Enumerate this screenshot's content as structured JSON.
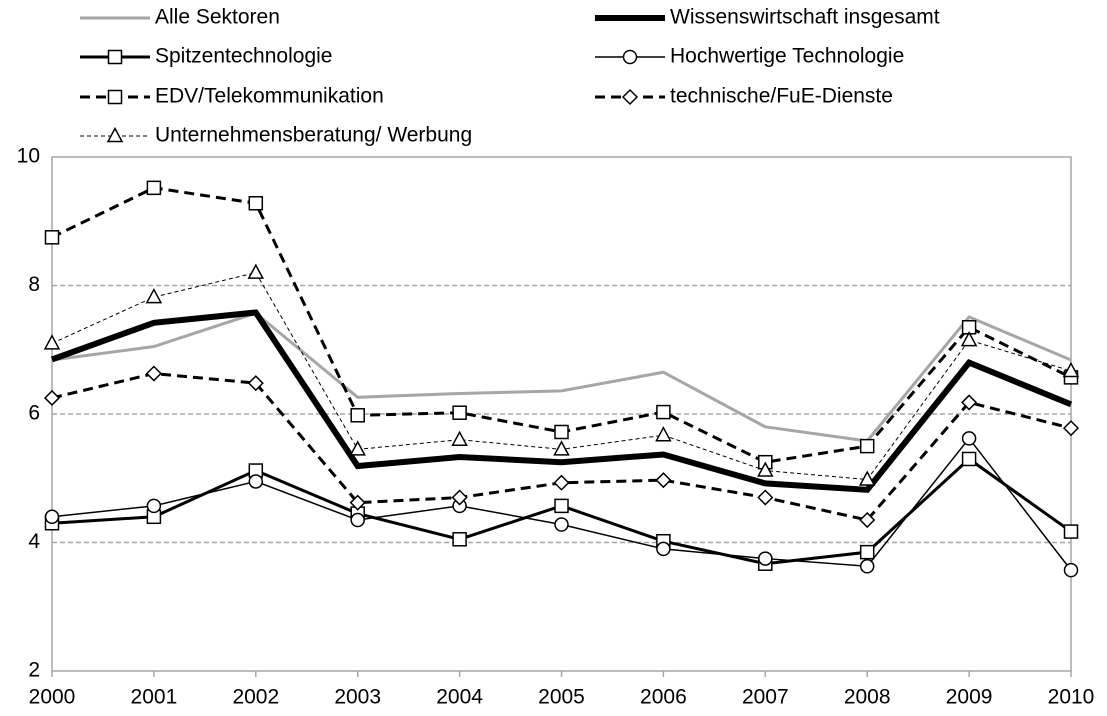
{
  "chart_data": {
    "type": "line",
    "x": [
      2000,
      2001,
      2002,
      2003,
      2004,
      2005,
      2006,
      2007,
      2008,
      2009,
      2010
    ],
    "xlim": [
      2000,
      2010
    ],
    "xticks": [
      2000,
      2001,
      2002,
      2003,
      2004,
      2005,
      2006,
      2007,
      2008,
      2009,
      2010
    ],
    "ylim": [
      2,
      10
    ],
    "yticks": [
      2,
      4,
      6,
      8,
      10
    ],
    "grid": true,
    "series": [
      {
        "name": "Alle Sektoren",
        "color": "#a6a6a6",
        "line_width": 3,
        "line_style": "solid",
        "marker": "none",
        "values": [
          6.84,
          7.05,
          7.57,
          6.26,
          6.32,
          6.36,
          6.65,
          5.8,
          5.58,
          7.51,
          6.84
        ]
      },
      {
        "name": "Wissenswirtschaft insgesamt",
        "color": "#000000",
        "line_width": 6,
        "line_style": "solid",
        "marker": "none",
        "values": [
          6.85,
          7.42,
          7.58,
          5.19,
          5.33,
          5.25,
          5.37,
          4.92,
          4.82,
          6.8,
          6.15
        ]
      },
      {
        "name": "Spitzentechnologie",
        "color": "#000000",
        "line_width": 3,
        "line_style": "solid",
        "marker": "square",
        "values": [
          4.3,
          4.4,
          5.12,
          4.45,
          4.05,
          4.57,
          4.02,
          3.67,
          3.85,
          5.3,
          4.17
        ]
      },
      {
        "name": "Hochwertige Technologie",
        "color": "#000000",
        "line_width": 1.5,
        "line_style": "solid",
        "marker": "circle",
        "values": [
          4.4,
          4.57,
          4.95,
          4.35,
          4.57,
          4.28,
          3.9,
          3.75,
          3.63,
          5.62,
          3.57
        ]
      },
      {
        "name": "EDV/Telekommunikation",
        "color": "#000000",
        "line_width": 3,
        "line_style": "dashed",
        "marker": "square",
        "values": [
          8.75,
          9.52,
          9.28,
          5.98,
          6.02,
          5.72,
          6.03,
          5.25,
          5.5,
          7.35,
          6.57
        ]
      },
      {
        "name": "technische/FuE-Dienste",
        "color": "#000000",
        "line_width": 3,
        "line_style": "dashed",
        "marker": "diamond",
        "values": [
          6.25,
          6.63,
          6.48,
          4.62,
          4.7,
          4.93,
          4.97,
          4.7,
          4.35,
          6.18,
          5.78
        ]
      },
      {
        "name": "Unternehmensberatung/ Werbung",
        "color": "#000000",
        "line_width": 1,
        "line_style": "dotted",
        "marker": "triangle",
        "values": [
          7.1,
          7.82,
          8.2,
          5.45,
          5.6,
          5.45,
          5.67,
          5.12,
          4.98,
          7.15,
          6.67
        ]
      }
    ]
  }
}
